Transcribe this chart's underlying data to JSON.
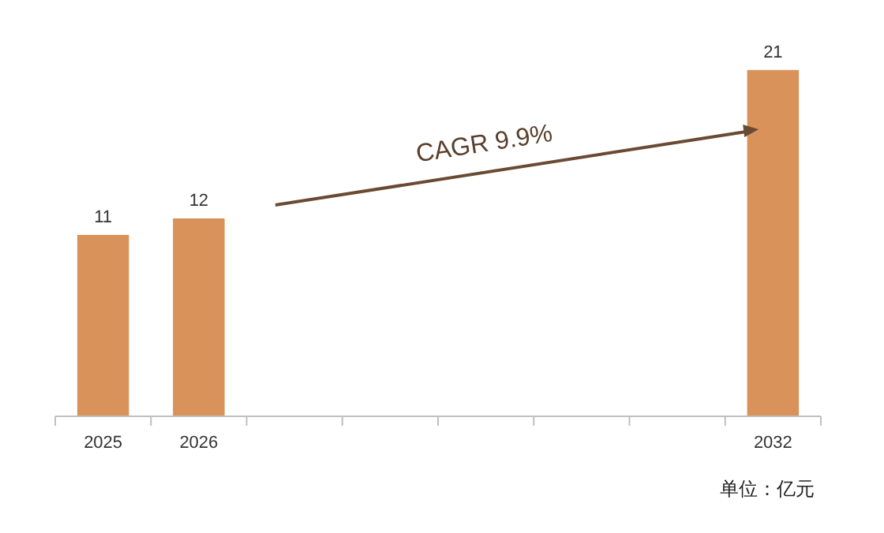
{
  "chart_data": {
    "type": "bar",
    "categories": [
      "2025",
      "2026",
      null,
      null,
      null,
      null,
      null,
      "2032"
    ],
    "values": [
      11,
      12,
      null,
      null,
      null,
      null,
      null,
      21
    ],
    "color": "#d8925a",
    "data_labels": true,
    "annotations": [
      "CAGR 9.9%",
      "单位：亿元"
    ]
  }
}
